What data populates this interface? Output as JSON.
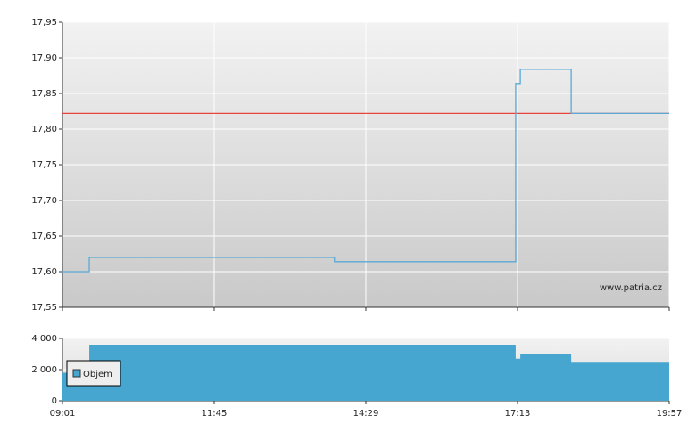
{
  "chart_data": [
    {
      "type": "line",
      "step": true,
      "watermark": "www.patria.cz",
      "x": [
        541,
        570,
        835,
        1030,
        1031,
        1036,
        1091,
        1197
      ],
      "series": [
        {
          "color": "#5aa9d6",
          "values": [
            17.6,
            17.62,
            17.614,
            17.614,
            17.864,
            17.884,
            17.822,
            17.822
          ]
        }
      ],
      "reference": {
        "value": 17.822,
        "color": "#e8443a"
      },
      "xlim": [
        541,
        1197
      ],
      "xticks": [
        541,
        705,
        869,
        1033,
        1197
      ],
      "ylim": [
        17.55,
        17.95
      ],
      "yticks": [
        {
          "value": 17.55,
          "label": "17,55"
        },
        {
          "value": 17.6,
          "label": "17,60"
        },
        {
          "value": 17.65,
          "label": "17,65"
        },
        {
          "value": 17.7,
          "label": "17,70"
        },
        {
          "value": 17.75,
          "label": "17,75"
        },
        {
          "value": 17.8,
          "label": "17,80"
        },
        {
          "value": 17.85,
          "label": "17,85"
        },
        {
          "value": 17.9,
          "label": "17,90"
        },
        {
          "value": 17.95,
          "label": "17,95"
        }
      ],
      "grid": true
    },
    {
      "type": "area",
      "step": true,
      "x": [
        541,
        570,
        1031,
        1036,
        1091,
        1197
      ],
      "series": [
        {
          "name": "Objem",
          "color": "#46a6cf",
          "values": [
            1800,
            3600,
            2700,
            3000,
            2500,
            2500
          ]
        }
      ],
      "xlim": [
        541,
        1197
      ],
      "xticks": [
        {
          "value": 541,
          "label": "09:01"
        },
        {
          "value": 705,
          "label": "11:45"
        },
        {
          "value": 869,
          "label": "14:29"
        },
        {
          "value": 1033,
          "label": "17:13"
        },
        {
          "value": 1197,
          "label": "19:57"
        }
      ],
      "ylim": [
        0,
        4000
      ],
      "yticks": [
        0,
        {
          "value": 2000,
          "label": "2 000"
        },
        {
          "value": 4000,
          "label": "4 000"
        }
      ],
      "legend": "lower-left",
      "grid": true
    }
  ]
}
